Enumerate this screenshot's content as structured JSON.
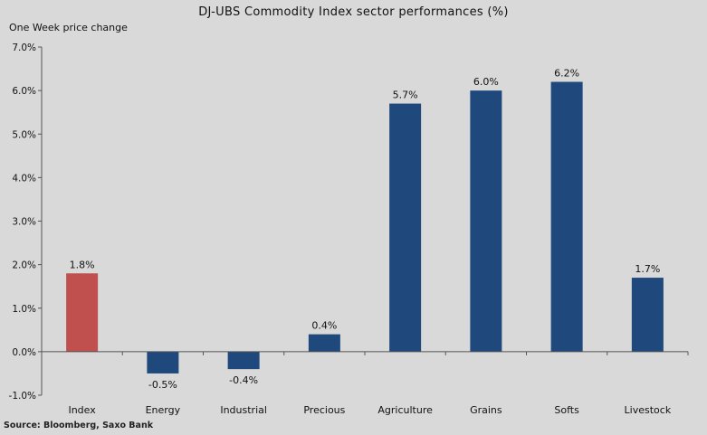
{
  "chart_data": {
    "type": "bar",
    "title": "DJ-UBS  Commodity  Index  sector performances  (%)",
    "ylabel": "One Week price change",
    "xlabel": "",
    "categories": [
      "Index",
      "Energy",
      "Industrial",
      "Precious",
      "Agriculture",
      "Grains",
      "Softs",
      "Livestock"
    ],
    "values": [
      1.8,
      -0.5,
      -0.4,
      0.4,
      5.7,
      6.0,
      6.2,
      1.7
    ],
    "data_labels": [
      "1.8%",
      "-0.5%",
      "-0.4%",
      "0.4%",
      "5.7%",
      "6.0%",
      "6.2%",
      "1.7%"
    ],
    "bar_colors": [
      "#c0504d",
      "#1f497d",
      "#1f497d",
      "#1f497d",
      "#1f497d",
      "#1f497d",
      "#1f497d",
      "#1f497d"
    ],
    "ylim": [
      -1.0,
      7.0
    ],
    "yticks": [
      7.0,
      6.0,
      5.0,
      4.0,
      3.0,
      2.0,
      1.0,
      0.0,
      -1.0
    ],
    "ytick_labels": [
      "7.0%",
      "6.0%",
      "5.0%",
      "4.0%",
      "3.0%",
      "2.0%",
      "1.0%",
      "0.0%",
      "-1.0%"
    ],
    "grid": false,
    "legend": "none"
  },
  "source": "Source: Bloomberg, Saxo Bank",
  "colors": {
    "background": "#d9d9d9",
    "axis": "#555555"
  }
}
